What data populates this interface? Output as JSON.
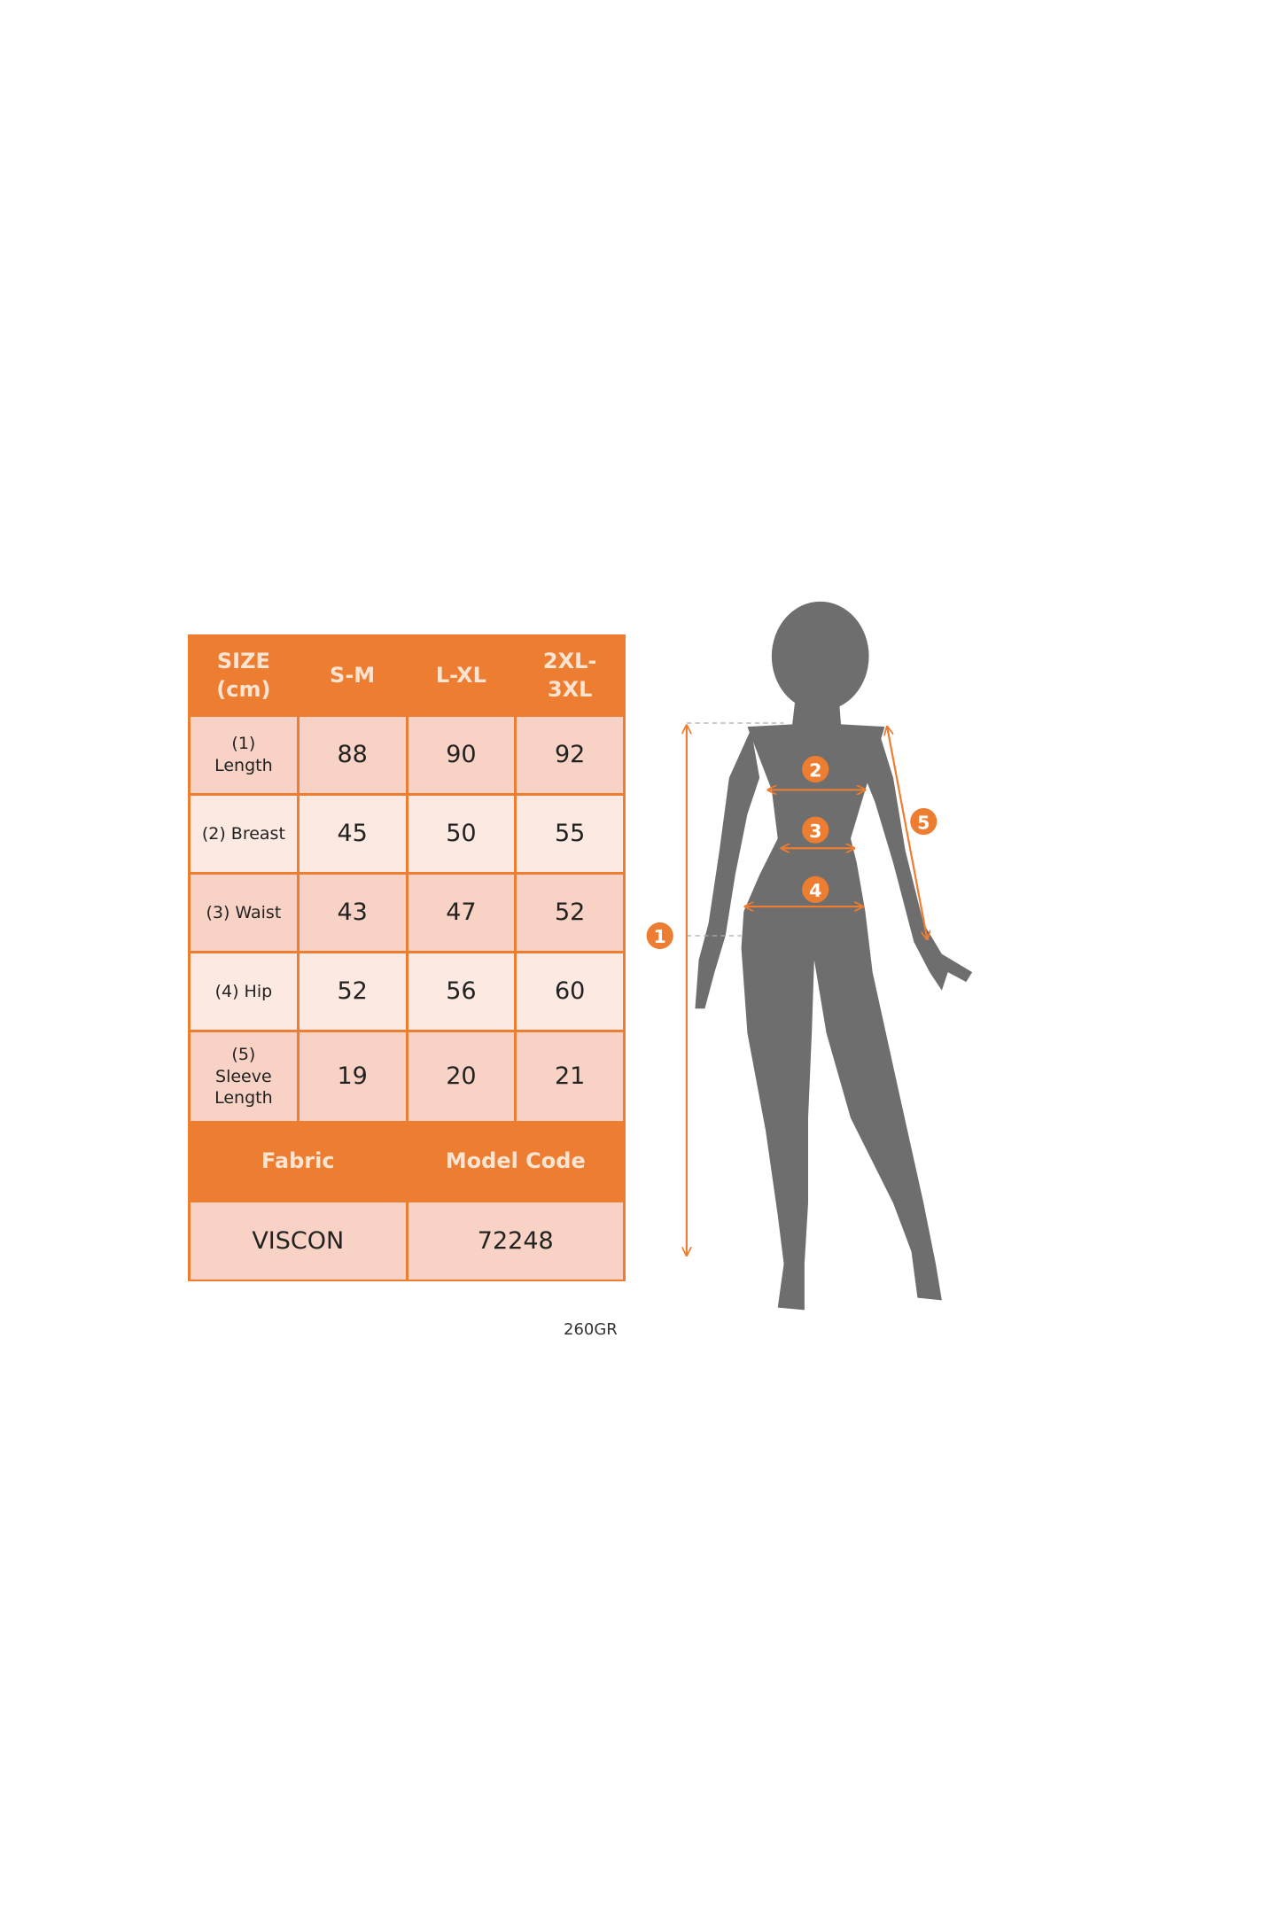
{
  "table": {
    "header": [
      "SIZE\n(cm)",
      "S-M",
      "L-XL",
      "2XL-\n3XL"
    ],
    "rows": [
      {
        "label": "(1)\nLength",
        "values": [
          "88",
          "90",
          "92"
        ]
      },
      {
        "label": "(2) Breast",
        "values": [
          "45",
          "50",
          "55"
        ]
      },
      {
        "label": "(3) Waist",
        "values": [
          "43",
          "47",
          "52"
        ]
      },
      {
        "label": "(4) Hip",
        "values": [
          "52",
          "56",
          "60"
        ]
      },
      {
        "label": "(5)\nSleeve\nLength",
        "values": [
          "19",
          "20",
          "21"
        ]
      }
    ],
    "footer_header": [
      "Fabric",
      "Model Code"
    ],
    "footer_values": [
      "VISCON",
      "72248"
    ]
  },
  "note": "260GR",
  "figure": {
    "markers": [
      "1",
      "2",
      "3",
      "4",
      "5"
    ]
  },
  "colors": {
    "accent": "#ED7D31",
    "silhouette": "#6E6E6E",
    "cell_dark": "#F8D3C5",
    "cell_light": "#FCE9E1"
  }
}
